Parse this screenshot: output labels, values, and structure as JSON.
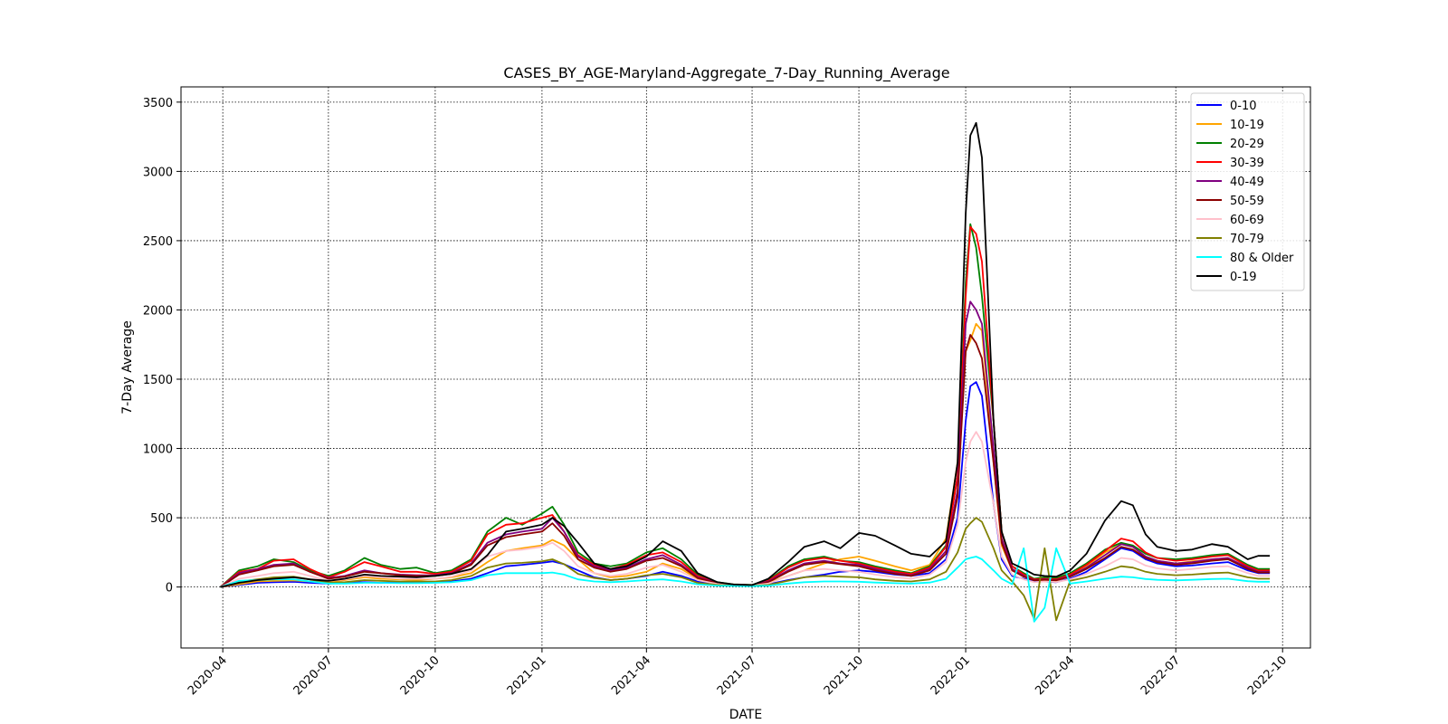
{
  "chart_data": {
    "type": "line",
    "title": "CASES_BY_AGE-Maryland-Aggregate_7-Day_Running_Average",
    "xlabel": "DATE",
    "ylabel": "7-Day Average",
    "xlim": [
      "2020-02-25",
      "2022-10-25"
    ],
    "ylim": [
      -440,
      3610
    ],
    "x_ticks": [
      "2020-04",
      "2020-07",
      "2020-10",
      "2021-01",
      "2021-04",
      "2021-07",
      "2021-10",
      "2022-01",
      "2022-04",
      "2022-07",
      "2022-10"
    ],
    "y_ticks": [
      0,
      500,
      1000,
      1500,
      2000,
      2500,
      3000,
      3500
    ],
    "grid": true,
    "legend": "top-right",
    "x": [
      "2020-03-30",
      "2020-04-15",
      "2020-05-01",
      "2020-05-15",
      "2020-06-01",
      "2020-06-15",
      "2020-07-01",
      "2020-07-15",
      "2020-08-01",
      "2020-08-15",
      "2020-09-01",
      "2020-09-15",
      "2020-10-01",
      "2020-10-15",
      "2020-11-01",
      "2020-11-15",
      "2020-12-01",
      "2020-12-15",
      "2021-01-01",
      "2021-01-10",
      "2021-01-20",
      "2021-02-01",
      "2021-02-15",
      "2021-03-01",
      "2021-03-15",
      "2021-04-01",
      "2021-04-15",
      "2021-05-01",
      "2021-05-15",
      "2021-06-01",
      "2021-06-15",
      "2021-07-01",
      "2021-07-15",
      "2021-08-01",
      "2021-08-15",
      "2021-09-01",
      "2021-09-15",
      "2021-10-01",
      "2021-10-15",
      "2021-11-01",
      "2021-11-15",
      "2021-12-01",
      "2021-12-15",
      "2021-12-25",
      "2022-01-01",
      "2022-01-05",
      "2022-01-10",
      "2022-01-15",
      "2022-01-25",
      "2022-02-01",
      "2022-02-10",
      "2022-02-20",
      "2022-03-01",
      "2022-03-10",
      "2022-03-20",
      "2022-04-01",
      "2022-04-15",
      "2022-05-01",
      "2022-05-15",
      "2022-05-25",
      "2022-06-05",
      "2022-06-15",
      "2022-07-01",
      "2022-07-15",
      "2022-08-01",
      "2022-08-15",
      "2022-09-01",
      "2022-09-10",
      "2022-09-20"
    ],
    "series": [
      {
        "name": "0-10",
        "color": "#0000ff",
        "values": [
          0,
          15,
          30,
          35,
          38,
          30,
          25,
          30,
          35,
          30,
          32,
          30,
          35,
          40,
          60,
          100,
          150,
          160,
          175,
          185,
          165,
          120,
          70,
          50,
          60,
          80,
          110,
          80,
          40,
          20,
          12,
          10,
          20,
          50,
          70,
          90,
          110,
          120,
          110,
          90,
          80,
          100,
          200,
          500,
          1200,
          1450,
          1480,
          1380,
          600,
          200,
          80,
          60,
          40,
          40,
          35,
          60,
          110,
          200,
          280,
          260,
          200,
          170,
          150,
          155,
          170,
          180,
          120,
          100,
          100
        ]
      },
      {
        "name": "10-19",
        "color": "#ffa500",
        "values": [
          0,
          20,
          40,
          45,
          48,
          40,
          35,
          50,
          70,
          60,
          55,
          50,
          60,
          70,
          100,
          180,
          260,
          280,
          300,
          340,
          300,
          200,
          100,
          70,
          80,
          110,
          170,
          130,
          60,
          25,
          15,
          12,
          30,
          80,
          120,
          170,
          200,
          220,
          190,
          150,
          120,
          160,
          350,
          900,
          1700,
          1780,
          1900,
          1850,
          900,
          300,
          120,
          80,
          50,
          50,
          45,
          80,
          150,
          250,
          310,
          290,
          220,
          190,
          170,
          185,
          200,
          210,
          140,
          110,
          110
        ]
      },
      {
        "name": "20-29",
        "color": "#008000",
        "values": [
          0,
          120,
          150,
          200,
          180,
          120,
          80,
          120,
          210,
          160,
          130,
          140,
          100,
          120,
          200,
          400,
          500,
          450,
          530,
          580,
          450,
          250,
          170,
          150,
          170,
          250,
          280,
          200,
          90,
          35,
          20,
          15,
          50,
          150,
          200,
          220,
          190,
          180,
          150,
          120,
          100,
          150,
          300,
          800,
          2200,
          2620,
          2450,
          2100,
          1200,
          400,
          150,
          100,
          60,
          70,
          65,
          100,
          170,
          270,
          320,
          300,
          240,
          210,
          200,
          210,
          230,
          240,
          160,
          130,
          130
        ]
      },
      {
        "name": "30-39",
        "color": "#ff0000",
        "values": [
          0,
          110,
          130,
          190,
          200,
          130,
          70,
          110,
          180,
          150,
          110,
          110,
          95,
          110,
          190,
          380,
          450,
          460,
          500,
          520,
          400,
          230,
          160,
          130,
          160,
          230,
          250,
          180,
          80,
          30,
          18,
          14,
          45,
          140,
          190,
          210,
          190,
          170,
          140,
          110,
          95,
          140,
          290,
          800,
          2100,
          2600,
          2550,
          2350,
          1200,
          400,
          150,
          90,
          55,
          60,
          55,
          90,
          160,
          260,
          350,
          330,
          250,
          210,
          190,
          200,
          220,
          230,
          150,
          120,
          120
        ]
      },
      {
        "name": "40-49",
        "color": "#800080",
        "values": [
          0,
          100,
          130,
          160,
          170,
          110,
          65,
          80,
          120,
          100,
          90,
          85,
          85,
          100,
          170,
          320,
          380,
          400,
          420,
          500,
          400,
          220,
          150,
          120,
          140,
          200,
          230,
          160,
          70,
          30,
          18,
          14,
          40,
          120,
          170,
          190,
          170,
          160,
          130,
          100,
          85,
          130,
          260,
          700,
          1900,
          2060,
          2000,
          1900,
          1000,
          350,
          130,
          80,
          50,
          55,
          50,
          80,
          140,
          230,
          310,
          290,
          220,
          190,
          170,
          180,
          200,
          210,
          140,
          110,
          110
        ]
      },
      {
        "name": "50-59",
        "color": "#8b0000",
        "values": [
          0,
          90,
          120,
          150,
          160,
          110,
          60,
          75,
          110,
          100,
          85,
          80,
          80,
          95,
          160,
          300,
          360,
          380,
          400,
          460,
          370,
          200,
          140,
          110,
          130,
          190,
          210,
          150,
          65,
          28,
          17,
          13,
          35,
          110,
          160,
          180,
          165,
          150,
          120,
          95,
          80,
          120,
          240,
          650,
          1700,
          1820,
          1760,
          1650,
          900,
          320,
          120,
          75,
          48,
          52,
          48,
          75,
          130,
          210,
          290,
          270,
          210,
          180,
          160,
          170,
          190,
          200,
          130,
          105,
          105
        ]
      },
      {
        "name": "60-69",
        "color": "#ffc0cb",
        "values": [
          0,
          60,
          80,
          100,
          110,
          80,
          45,
          55,
          80,
          70,
          60,
          60,
          60,
          75,
          120,
          220,
          260,
          270,
          290,
          320,
          260,
          150,
          100,
          80,
          95,
          140,
          160,
          110,
          50,
          22,
          14,
          11,
          25,
          80,
          120,
          130,
          120,
          110,
          90,
          70,
          60,
          90,
          180,
          450,
          900,
          1050,
          1120,
          1050,
          600,
          220,
          90,
          55,
          35,
          40,
          36,
          55,
          95,
          150,
          210,
          200,
          155,
          135,
          120,
          130,
          145,
          150,
          100,
          80,
          80
        ]
      },
      {
        "name": "70-79",
        "color": "#808000",
        "values": [
          0,
          40,
          55,
          70,
          75,
          55,
          30,
          35,
          50,
          45,
          40,
          40,
          40,
          50,
          80,
          140,
          170,
          175,
          185,
          200,
          165,
          95,
          65,
          50,
          60,
          85,
          95,
          70,
          30,
          15,
          10,
          8,
          15,
          45,
          70,
          80,
          75,
          70,
          55,
          45,
          40,
          55,
          110,
          250,
          420,
          460,
          500,
          470,
          280,
          120,
          40,
          -60,
          -230,
          280,
          -240,
          45,
          70,
          110,
          150,
          140,
          110,
          95,
          85,
          90,
          100,
          105,
          70,
          60,
          60
        ]
      },
      {
        "name": "80 & Older",
        "color": "#00ffff",
        "values": [
          0,
          45,
          50,
          55,
          55,
          40,
          25,
          25,
          30,
          30,
          28,
          28,
          30,
          35,
          50,
          85,
          100,
          100,
          100,
          105,
          90,
          55,
          40,
          35,
          40,
          50,
          55,
          40,
          20,
          10,
          8,
          6,
          10,
          25,
          35,
          40,
          40,
          38,
          32,
          28,
          25,
          32,
          60,
          140,
          200,
          210,
          220,
          200,
          120,
          60,
          20,
          280,
          -250,
          -150,
          280,
          25,
          40,
          60,
          75,
          70,
          58,
          52,
          48,
          52,
          58,
          60,
          42,
          38,
          38
        ]
      },
      {
        "name": "0-19",
        "color": "#000000",
        "values": [
          0,
          30,
          50,
          60,
          70,
          55,
          45,
          60,
          90,
          80,
          75,
          70,
          80,
          95,
          130,
          230,
          400,
          420,
          450,
          500,
          440,
          320,
          170,
          130,
          150,
          220,
          330,
          260,
          100,
          35,
          18,
          14,
          60,
          180,
          290,
          330,
          280,
          390,
          370,
          300,
          240,
          220,
          330,
          900,
          2700,
          3260,
          3350,
          3100,
          1200,
          400,
          170,
          130,
          90,
          80,
          75,
          120,
          240,
          480,
          620,
          590,
          380,
          290,
          260,
          270,
          310,
          290,
          200,
          225,
          225
        ]
      }
    ]
  }
}
